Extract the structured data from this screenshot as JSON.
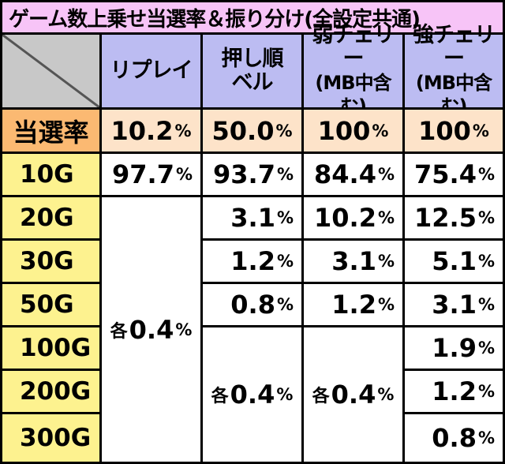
{
  "title": "ゲーム数上乗せ当選率＆振り分け(全設定共通)",
  "columns": [
    {
      "line1": "リプレイ",
      "line2": ""
    },
    {
      "line1": "押し順",
      "line2": "ベル"
    },
    {
      "line1": "弱チェリー",
      "line2": "(MB中含む)"
    },
    {
      "line1": "強チェリー",
      "line2": "(MB中含む)"
    }
  ],
  "win_rate": {
    "label": "当選率",
    "values": [
      "10.2",
      "50.0",
      "100",
      "100"
    ]
  },
  "percent_sign": "%",
  "each_prefix": "各",
  "rows": [
    {
      "label": "10G",
      "values": [
        "97.7",
        "93.7",
        "84.4",
        "75.4"
      ]
    },
    {
      "label": "20G",
      "values": [
        "",
        "3.1",
        "10.2",
        "12.5"
      ]
    },
    {
      "label": "30G",
      "values": [
        "",
        "1.2",
        "3.1",
        "5.1"
      ]
    },
    {
      "label": "50G",
      "values": [
        "",
        "0.8",
        "1.2",
        "3.1"
      ]
    },
    {
      "label": "100G",
      "values": [
        "",
        "",
        "",
        "1.9"
      ]
    },
    {
      "label": "200G",
      "values": [
        "",
        "",
        "",
        "1.2"
      ]
    },
    {
      "label": "300G",
      "values": [
        "",
        "",
        "",
        "0.8"
      ]
    }
  ],
  "merged": {
    "replay_each": "0.4",
    "bell_each": "0.4",
    "weak_cherry_each": "0.4"
  }
}
